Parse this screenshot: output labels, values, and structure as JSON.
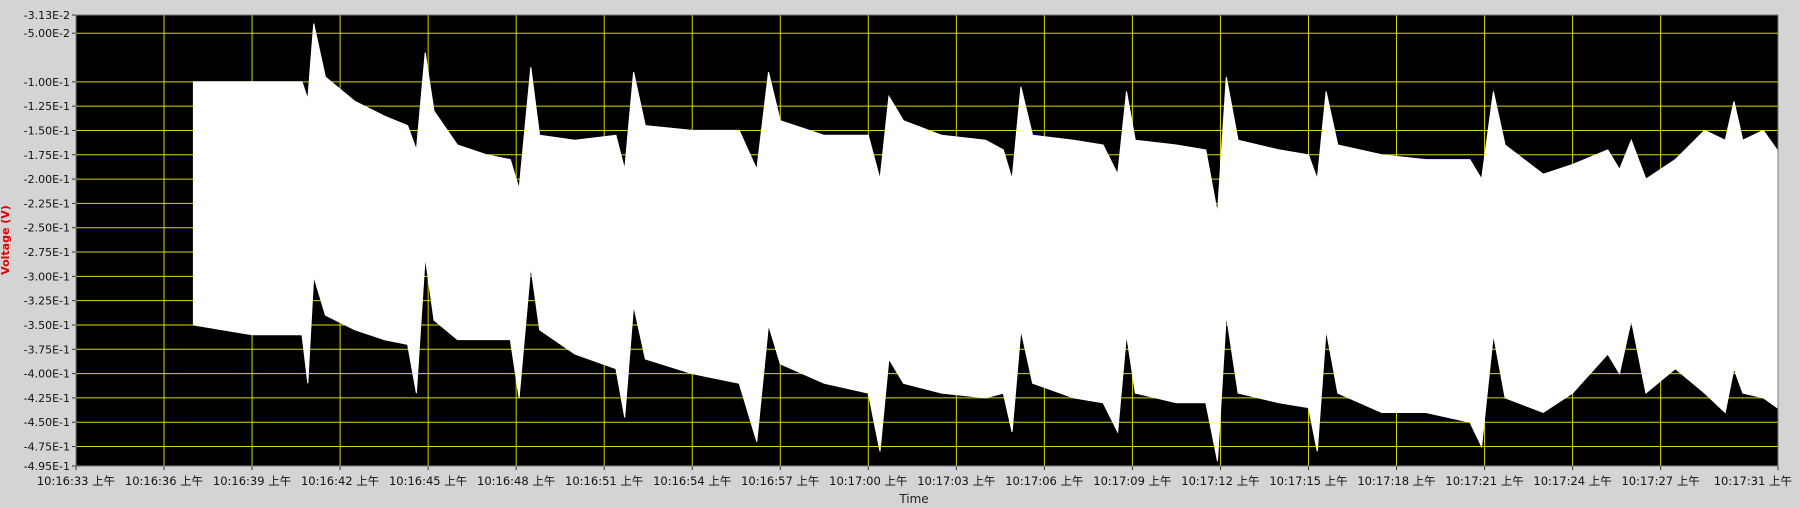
{
  "chart_data": {
    "type": "area",
    "xlabel": "Time",
    "ylabel": "Voltage (V)",
    "ylim": [
      -0.495,
      -0.0313
    ],
    "xlim_seconds_from_start": [
      0,
      58
    ],
    "grid": true,
    "colors": {
      "plot_background": "#000000",
      "grid": "#d7d700",
      "trace": "#ffffff",
      "ylabel": "#e00000",
      "frame": "#d4d4d4"
    },
    "y_ticks": [
      {
        "label": "-3.13E-2",
        "value": -0.0313
      },
      {
        "label": "-5.00E-2",
        "value": -0.05
      },
      {
        "label": "-1.00E-1",
        "value": -0.1
      },
      {
        "label": "-1.25E-1",
        "value": -0.125
      },
      {
        "label": "-1.50E-1",
        "value": -0.15
      },
      {
        "label": "-1.75E-1",
        "value": -0.175
      },
      {
        "label": "-2.00E-1",
        "value": -0.2
      },
      {
        "label": "-2.25E-1",
        "value": -0.225
      },
      {
        "label": "-2.50E-1",
        "value": -0.25
      },
      {
        "label": "-2.75E-1",
        "value": -0.275
      },
      {
        "label": "-3.00E-1",
        "value": -0.3
      },
      {
        "label": "-3.25E-1",
        "value": -0.325
      },
      {
        "label": "-3.50E-1",
        "value": -0.35
      },
      {
        "label": "-3.75E-1",
        "value": -0.375
      },
      {
        "label": "-4.00E-1",
        "value": -0.4
      },
      {
        "label": "-4.25E-1",
        "value": -0.425
      },
      {
        "label": "-4.50E-1",
        "value": -0.45
      },
      {
        "label": "-4.75E-1",
        "value": -0.475
      },
      {
        "label": "-4.95E-1",
        "value": -0.495
      }
    ],
    "x_ticks": [
      {
        "label": "10:16:33 上午",
        "t": 0
      },
      {
        "label": "10:16:36 上午",
        "t": 3
      },
      {
        "label": "10:16:39 上午",
        "t": 6
      },
      {
        "label": "10:16:42 上午",
        "t": 9
      },
      {
        "label": "10:16:45 上午",
        "t": 12
      },
      {
        "label": "10:16:48 上午",
        "t": 15
      },
      {
        "label": "10:16:51 上午",
        "t": 18
      },
      {
        "label": "10:16:54 上午",
        "t": 21
      },
      {
        "label": "10:16:57 上午",
        "t": 24
      },
      {
        "label": "10:17:00 上午",
        "t": 27
      },
      {
        "label": "10:17:03 上午",
        "t": 30
      },
      {
        "label": "10:17:06 上午",
        "t": 33
      },
      {
        "label": "10:17:09 上午",
        "t": 36
      },
      {
        "label": "10:17:12 上午",
        "t": 39
      },
      {
        "label": "10:17:15 上午",
        "t": 42
      },
      {
        "label": "10:17:18 上午",
        "t": 45
      },
      {
        "label": "10:17:21 上午",
        "t": 48
      },
      {
        "label": "10:17:24 上午",
        "t": 51
      },
      {
        "label": "10:17:27 上午",
        "t": 54
      },
      {
        "label": "10:17:31 上午",
        "t": 58
      }
    ],
    "upper_envelope": [
      [
        4.0,
        -0.1
      ],
      [
        6.0,
        -0.1
      ],
      [
        7.7,
        -0.1
      ],
      [
        7.9,
        -0.118
      ],
      [
        8.1,
        -0.04
      ],
      [
        8.5,
        -0.095
      ],
      [
        9.5,
        -0.12
      ],
      [
        10.5,
        -0.135
      ],
      [
        11.3,
        -0.145
      ],
      [
        11.6,
        -0.17
      ],
      [
        11.9,
        -0.07
      ],
      [
        12.2,
        -0.13
      ],
      [
        13.0,
        -0.165
      ],
      [
        14.0,
        -0.175
      ],
      [
        14.8,
        -0.18
      ],
      [
        15.1,
        -0.21
      ],
      [
        15.5,
        -0.085
      ],
      [
        15.8,
        -0.155
      ],
      [
        17.0,
        -0.16
      ],
      [
        18.4,
        -0.155
      ],
      [
        18.7,
        -0.19
      ],
      [
        19.0,
        -0.09
      ],
      [
        19.4,
        -0.145
      ],
      [
        21.0,
        -0.15
      ],
      [
        22.6,
        -0.15
      ],
      [
        23.2,
        -0.19
      ],
      [
        23.6,
        -0.09
      ],
      [
        24.0,
        -0.14
      ],
      [
        25.5,
        -0.155
      ],
      [
        27.0,
        -0.155
      ],
      [
        27.4,
        -0.2
      ],
      [
        27.7,
        -0.115
      ],
      [
        28.2,
        -0.14
      ],
      [
        29.5,
        -0.155
      ],
      [
        31.0,
        -0.16
      ],
      [
        31.6,
        -0.17
      ],
      [
        31.9,
        -0.2
      ],
      [
        32.2,
        -0.105
      ],
      [
        32.6,
        -0.155
      ],
      [
        34.0,
        -0.16
      ],
      [
        35.0,
        -0.165
      ],
      [
        35.5,
        -0.195
      ],
      [
        35.8,
        -0.11
      ],
      [
        36.1,
        -0.16
      ],
      [
        37.5,
        -0.165
      ],
      [
        38.5,
        -0.17
      ],
      [
        38.9,
        -0.235
      ],
      [
        39.2,
        -0.095
      ],
      [
        39.6,
        -0.16
      ],
      [
        41.0,
        -0.17
      ],
      [
        42.0,
        -0.175
      ],
      [
        42.3,
        -0.2
      ],
      [
        42.6,
        -0.11
      ],
      [
        43.0,
        -0.165
      ],
      [
        44.5,
        -0.175
      ],
      [
        46.0,
        -0.18
      ],
      [
        47.5,
        -0.18
      ],
      [
        47.9,
        -0.2
      ],
      [
        48.3,
        -0.11
      ],
      [
        48.7,
        -0.165
      ],
      [
        50.0,
        -0.195
      ],
      [
        51.0,
        -0.185
      ],
      [
        52.2,
        -0.17
      ],
      [
        52.6,
        -0.19
      ],
      [
        53.0,
        -0.16
      ],
      [
        53.5,
        -0.2
      ],
      [
        54.5,
        -0.18
      ],
      [
        55.5,
        -0.15
      ],
      [
        56.2,
        -0.16
      ],
      [
        56.5,
        -0.12
      ],
      [
        56.8,
        -0.16
      ],
      [
        57.5,
        -0.15
      ],
      [
        58.2,
        -0.18
      ]
    ],
    "lower_envelope": [
      [
        4.0,
        -0.35
      ],
      [
        6.0,
        -0.36
      ],
      [
        7.7,
        -0.36
      ],
      [
        7.9,
        -0.41
      ],
      [
        8.1,
        -0.3
      ],
      [
        8.5,
        -0.34
      ],
      [
        9.5,
        -0.355
      ],
      [
        10.5,
        -0.365
      ],
      [
        11.3,
        -0.37
      ],
      [
        11.6,
        -0.42
      ],
      [
        11.9,
        -0.28
      ],
      [
        12.2,
        -0.345
      ],
      [
        13.0,
        -0.365
      ],
      [
        14.0,
        -0.365
      ],
      [
        14.8,
        -0.365
      ],
      [
        15.1,
        -0.425
      ],
      [
        15.5,
        -0.29
      ],
      [
        15.8,
        -0.355
      ],
      [
        17.0,
        -0.38
      ],
      [
        18.4,
        -0.395
      ],
      [
        18.7,
        -0.445
      ],
      [
        19.0,
        -0.33
      ],
      [
        19.4,
        -0.385
      ],
      [
        21.0,
        -0.4
      ],
      [
        22.6,
        -0.41
      ],
      [
        23.2,
        -0.47
      ],
      [
        23.6,
        -0.35
      ],
      [
        24.0,
        -0.39
      ],
      [
        25.5,
        -0.41
      ],
      [
        27.0,
        -0.42
      ],
      [
        27.4,
        -0.48
      ],
      [
        27.7,
        -0.385
      ],
      [
        28.2,
        -0.41
      ],
      [
        29.5,
        -0.42
      ],
      [
        31.0,
        -0.425
      ],
      [
        31.6,
        -0.42
      ],
      [
        31.9,
        -0.46
      ],
      [
        32.2,
        -0.355
      ],
      [
        32.6,
        -0.41
      ],
      [
        34.0,
        -0.425
      ],
      [
        35.0,
        -0.43
      ],
      [
        35.5,
        -0.46
      ],
      [
        35.8,
        -0.36
      ],
      [
        36.1,
        -0.42
      ],
      [
        37.5,
        -0.43
      ],
      [
        38.5,
        -0.43
      ],
      [
        38.9,
        -0.49
      ],
      [
        39.2,
        -0.34
      ],
      [
        39.6,
        -0.42
      ],
      [
        41.0,
        -0.43
      ],
      [
        42.0,
        -0.435
      ],
      [
        42.3,
        -0.48
      ],
      [
        42.6,
        -0.355
      ],
      [
        43.0,
        -0.42
      ],
      [
        44.5,
        -0.44
      ],
      [
        46.0,
        -0.44
      ],
      [
        47.5,
        -0.45
      ],
      [
        47.9,
        -0.475
      ],
      [
        48.3,
        -0.36
      ],
      [
        48.7,
        -0.425
      ],
      [
        50.0,
        -0.44
      ],
      [
        51.0,
        -0.42
      ],
      [
        52.2,
        -0.38
      ],
      [
        52.6,
        -0.4
      ],
      [
        53.0,
        -0.345
      ],
      [
        53.5,
        -0.42
      ],
      [
        54.5,
        -0.395
      ],
      [
        55.5,
        -0.42
      ],
      [
        56.2,
        -0.44
      ],
      [
        56.5,
        -0.395
      ],
      [
        56.8,
        -0.42
      ],
      [
        57.5,
        -0.425
      ],
      [
        58.2,
        -0.44
      ]
    ]
  }
}
